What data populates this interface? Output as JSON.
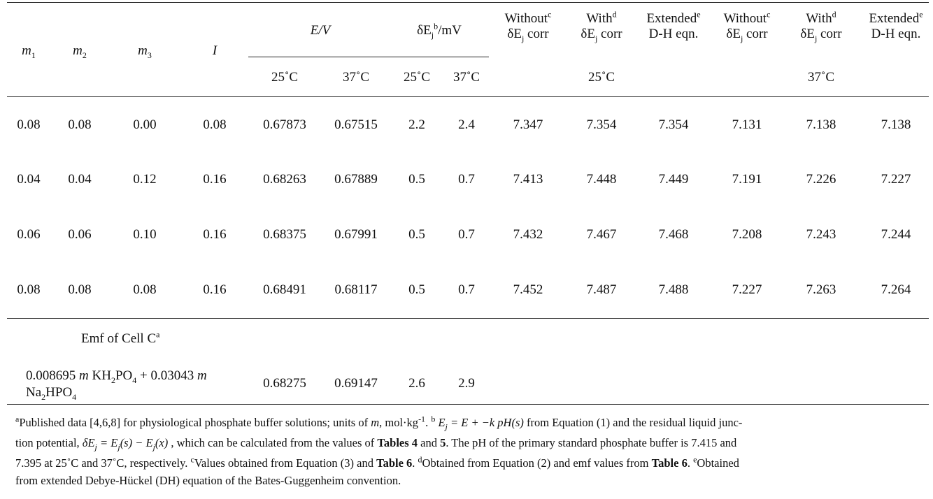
{
  "headers": {
    "m1": "m",
    "m1_sub": "1",
    "m2": "m",
    "m2_sub": "2",
    "m3": "m",
    "m3_sub": "3",
    "I": "I",
    "E_group": "E/V",
    "dEj_group": "δE",
    "dEj_sub": "j",
    "dEj_sup": "b",
    "dEj_unit": "/mV",
    "cols": [
      {
        "line1": "Without",
        "sup": "c",
        "line2_pre": "δE",
        "line2_sub": "j",
        "line2_post": " corr"
      },
      {
        "line1": "With",
        "sup": "d",
        "line2_pre": "δE",
        "line2_sub": "j",
        "line2_post": " corr"
      },
      {
        "line1": "Extended",
        "sup": "e",
        "line2_pre": "D-H eqn.",
        "line2_sub": "",
        "line2_post": ""
      },
      {
        "line1": "Without",
        "sup": "c",
        "line2_pre": "δE",
        "line2_sub": "j",
        "line2_post": " corr"
      },
      {
        "line1": "With",
        "sup": "d",
        "line2_pre": "δE",
        "line2_sub": "j",
        "line2_post": " corr"
      },
      {
        "line1": "Extended",
        "sup": "e",
        "line2_pre": "D-H eqn.",
        "line2_sub": "",
        "line2_post": ""
      }
    ],
    "temps": [
      "25˚C",
      "37˚C",
      "25˚C",
      "37˚C"
    ],
    "temp_group_25": "25˚C",
    "temp_group_37": "37˚C"
  },
  "rows": [
    [
      "0.08",
      "0.08",
      "0.00",
      "0.08",
      "0.67873",
      "0.67515",
      "2.2",
      "2.4",
      "7.347",
      "7.354",
      "7.354",
      "7.131",
      "7.138",
      "7.138"
    ],
    [
      "0.04",
      "0.04",
      "0.12",
      "0.16",
      "0.68263",
      "0.67889",
      "0.5",
      "0.7",
      "7.413",
      "7.448",
      "7.449",
      "7.191",
      "7.226",
      "7.227"
    ],
    [
      "0.06",
      "0.06",
      "0.10",
      "0.16",
      "0.68375",
      "0.67991",
      "0.5",
      "0.7",
      "7.432",
      "7.467",
      "7.468",
      "7.208",
      "7.243",
      "7.244"
    ],
    [
      "0.08",
      "0.08",
      "0.08",
      "0.16",
      "0.68491",
      "0.68117",
      "0.5",
      "0.7",
      "7.452",
      "7.487",
      "7.488",
      "7.227",
      "7.263",
      "7.264"
    ]
  ],
  "cell_c": {
    "title": "Emf of Cell C",
    "title_sup": "a",
    "comp_a": "0.008695 ",
    "comp_m1": "m",
    "comp_b": " KH",
    "comp_b_sub1": "2",
    "comp_b2": "PO",
    "comp_b_sub2": "4",
    "comp_c": " + 0.03043 ",
    "comp_m2": "m",
    "comp_d": "Na",
    "comp_d_sub1": "2",
    "comp_d2": "HPO",
    "comp_d_sub2": "4",
    "values": [
      "0.68275",
      "0.69147",
      "2.6",
      "2.9"
    ]
  },
  "notes": {
    "n1_sup": "a",
    "n1": "Published data [4,6,8] for physiological phosphate buffer solutions; units of ",
    "n1_m": "m",
    "n1_b": ", mol·kg",
    "n1_b_sup": "-1",
    "n1_c": ". ",
    "n2_sup": "b",
    "eq1": "E",
    "eq1_sub": "j",
    "eq1_rest": " = E + −k pH(s)",
    "n2": "  from Equation (1) and the residual liquid junc-",
    "n3_a": "tion potential,  ",
    "eq2": "δE",
    "eq2_sub": "j",
    "eq2_rest": " = E",
    "eq2_sub2": "j",
    "eq2_rest2": "(s) − E",
    "eq2_sub3": "j",
    "eq2_rest3": "(x)",
    "n3_b": " , which can be calculated from the values of ",
    "n3_t4": "Tables 4",
    "n3_and": " and ",
    "n3_t5": "5",
    "n3_c": ". The pH of the primary standard phosphate buffer is 7.415 and",
    "n4_a": "7.395 at 25˚C and 37˚C, respectively. ",
    "n4_sup_c": "c",
    "n4_b": "Values obtained from Equation (3) and ",
    "n4_t6a": "Table 6",
    "n4_c": ". ",
    "n4_sup_d": "d",
    "n4_d": "Obtained from Equation (2) and emf values from ",
    "n4_t6b": "Table 6",
    "n4_e": ". ",
    "n4_sup_e": "e",
    "n4_f": "Obtained",
    "n5": "from extended Debye-Hückel (DH) equation of the Bates-Guggenheim convention."
  }
}
